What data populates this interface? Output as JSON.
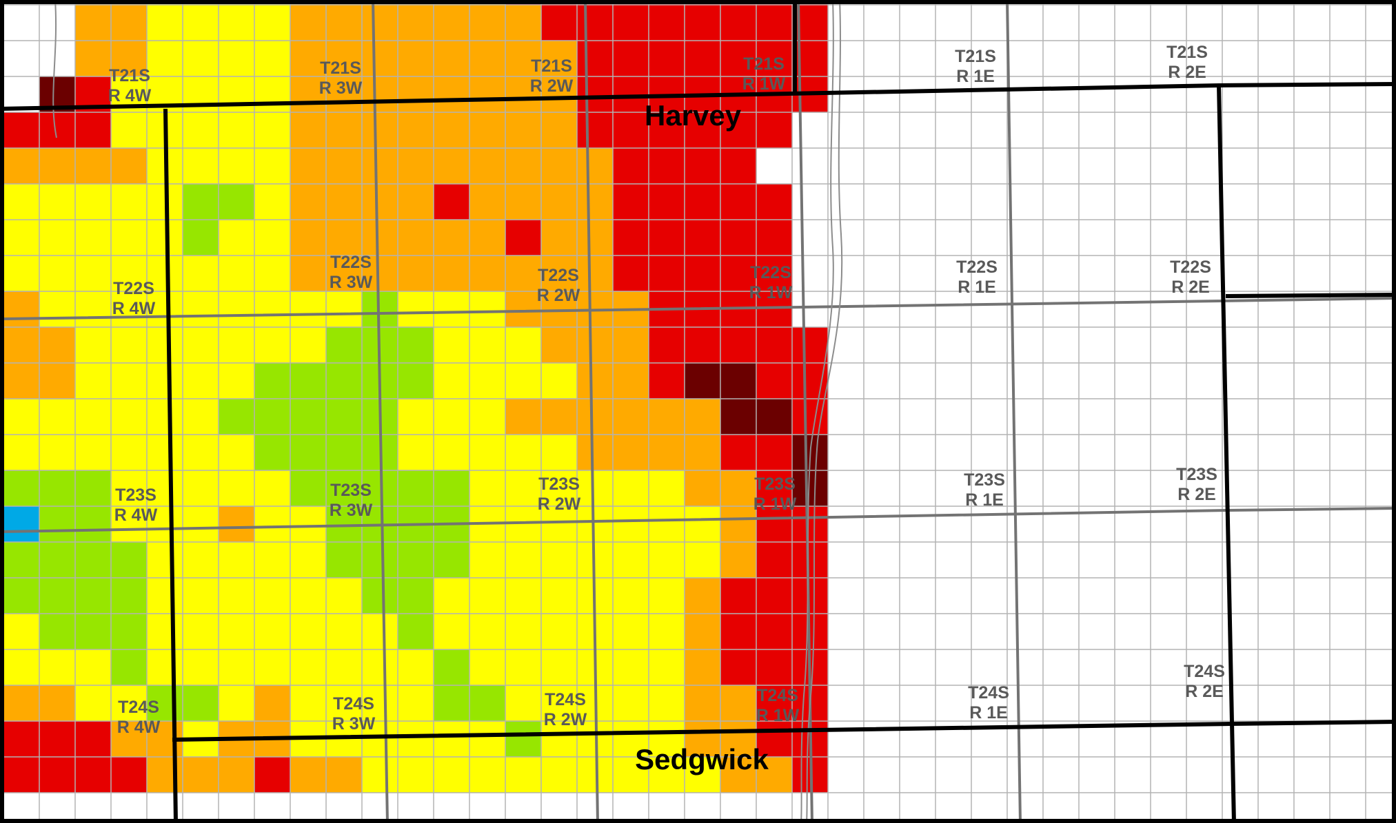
{
  "map": {
    "county_labels": [
      "Harvey",
      "Sedgwick"
    ],
    "township_labels": [
      {
        "t": "T21S",
        "r": "R 4W"
      },
      {
        "t": "T21S",
        "r": "R 3W"
      },
      {
        "t": "T21S",
        "r": "R 2W"
      },
      {
        "t": "T21S",
        "r": "R 1W"
      },
      {
        "t": "T21S",
        "r": "R 1E"
      },
      {
        "t": "T21S",
        "r": "R 2E"
      },
      {
        "t": "T22S",
        "r": "R 4W"
      },
      {
        "t": "T22S",
        "r": "R 3W"
      },
      {
        "t": "T22S",
        "r": "R 2W"
      },
      {
        "t": "T22S",
        "r": "R 1W"
      },
      {
        "t": "T22S",
        "r": "R 1E"
      },
      {
        "t": "T22S",
        "r": "R 2E"
      },
      {
        "t": "T23S",
        "r": "R 4W"
      },
      {
        "t": "T23S",
        "r": "R 3W"
      },
      {
        "t": "T23S",
        "r": "R 2W"
      },
      {
        "t": "T23S",
        "r": "R 1W"
      },
      {
        "t": "T23S",
        "r": "R 1E"
      },
      {
        "t": "T23S",
        "r": "R 2E"
      },
      {
        "t": "T24S",
        "r": "R 4W"
      },
      {
        "t": "T24S",
        "r": "R 3W"
      },
      {
        "t": "T24S",
        "r": "R 2W"
      },
      {
        "t": "T24S",
        "r": "R 1W"
      },
      {
        "t": "T24S",
        "r": "R 1E"
      },
      {
        "t": "T24S",
        "r": "R 2E"
      }
    ],
    "colors": {
      "D": "#6b0000",
      "R": "#e60000",
      "O": "#ffaa00",
      "Y": "#ffff00",
      "G": "#97e600",
      "B": "#00a9e6",
      "W": "#ffffff",
      "section_line": "#b3b3b3",
      "township_line": "#737373",
      "county_line": "#000000",
      "river": "#8c8c8c"
    },
    "section_grid": [
      "WWOOYYYYOOOOOORRRRRRRRRW",
      "WWOOYYYYOOOOOOORRRRRRRRW",
      "WWOOYYYYOOOOOOOORRRRRRRW",
      "WDRYYYYYOOOOOOOORRRRRRRW",
      "RRRYYYYYOOOOOOOORRRRRRWW",
      "OOOOYYYYOOOOOOOOORRRRWWW",
      "YYYYYGGYOOOOROOOORRRRRWW",
      "YYYYYGYYOOOOOOROORRRRRWW",
      "YYYYYYYYOOOOOOOOORRRRRWW",
      "OYYYYYYYYYGYYYOOOORRRRWW",
      "OOYYYYYYYGGGYYYOOORRRRRW",
      "OOYYYYYGGGGGYYYYOORDDRRW",
      "YYYYYYGGGGGYYYOOOOOODDRW",
      "YYYYYYYGGGGYYYYYOOOORRDW",
      "GGGYYYYYGGGGGYYYYYYOORDW",
      "BGGYYYOYYGGGGYYYYYYYORRW",
      "GGGGYYYYYGGGGYYYYYYYORRW",
      "GGGGYYYYYYGGYYYYYYYORRRW",
      "YGGGYYYYYYYGYYYYYYYORRRW",
      "YYYGYYYYYYYYGYYYYYYORRRW",
      "OOYYGGYOYYYYGGYYYYYOORRW",
      "RRROOYOOYYYYYYGYYYYOORRW",
      "RRRROOOROOYYYYYYYYYYOORW"
    ]
  }
}
